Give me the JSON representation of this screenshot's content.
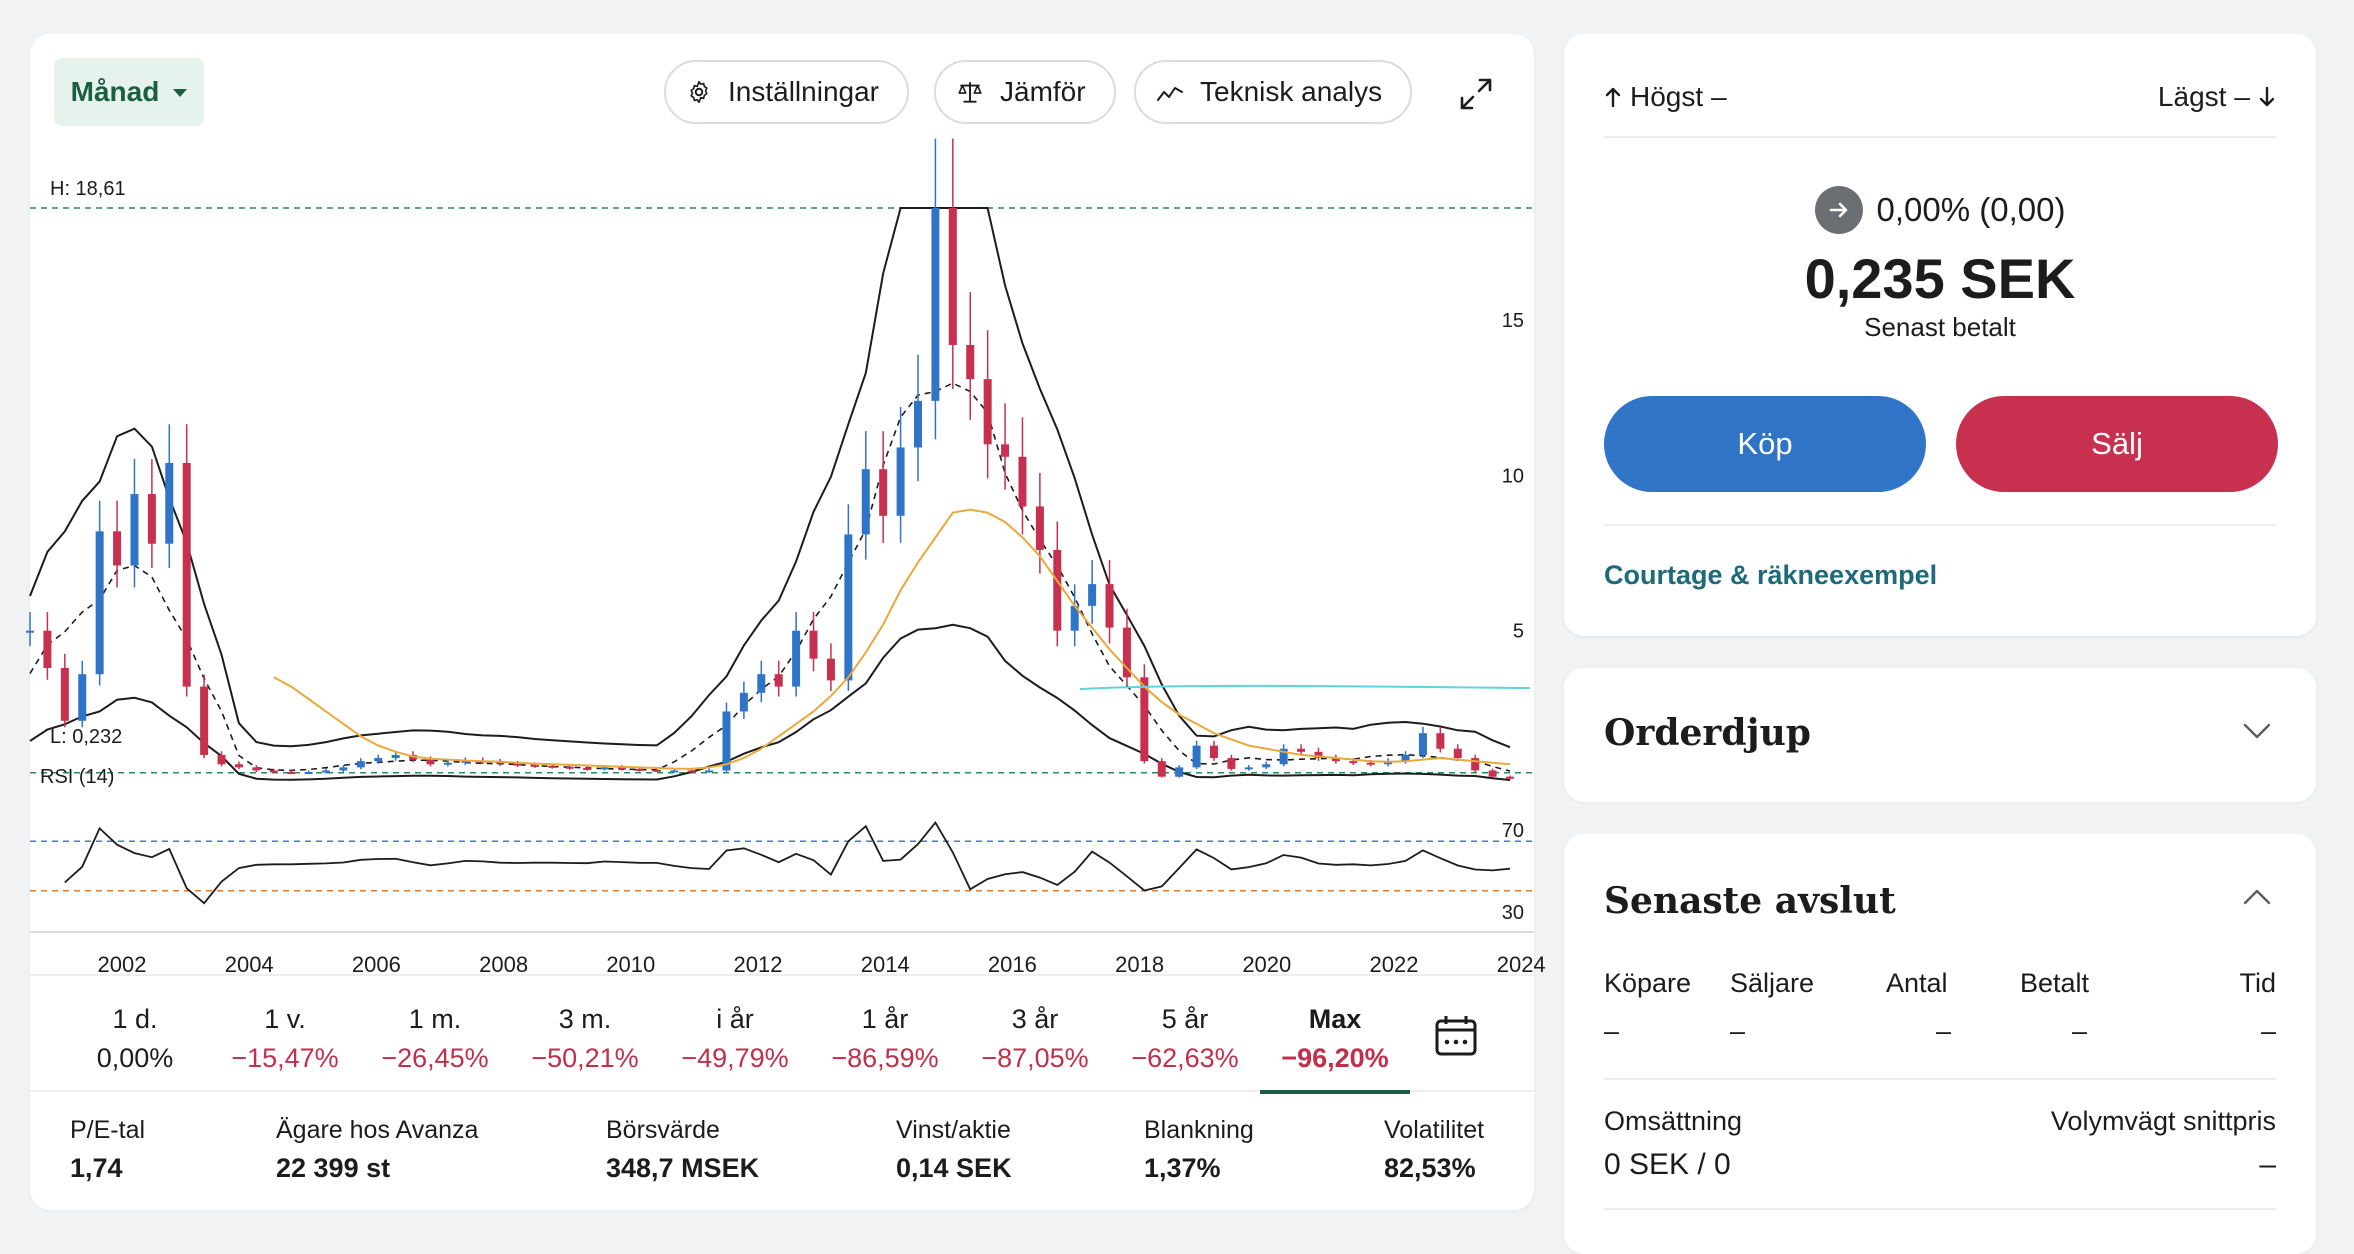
{
  "chart_toolbar": {
    "period": "Månad",
    "settings_label": "Inställningar",
    "compare_label": "Jämför",
    "technical_label": "Teknisk analys"
  },
  "chart_data": {
    "type": "line",
    "high_label": "H: 18,61",
    "low_label": "L: 0,232",
    "rsi_label": "RSI (14)",
    "y_ticks": [
      "15",
      "10",
      "5"
    ],
    "rsi_ticks": [
      "70",
      "30"
    ],
    "x_ticks": [
      "2002",
      "2004",
      "2006",
      "2008",
      "2010",
      "2012",
      "2014",
      "2016",
      "2018",
      "2020",
      "2022",
      "2024"
    ],
    "ylim": [
      0,
      18.61
    ],
    "series": [
      {
        "values": [
          5,
          3.8,
          2.1,
          3.6,
          8.2,
          7.1,
          9.4,
          7.8,
          10.4,
          3.2,
          1.0,
          0.7,
          0.6,
          0.5,
          0.45,
          0.42,
          0.45,
          0.5,
          0.6,
          0.8,
          0.9,
          1.0,
          0.85,
          0.7,
          0.75,
          0.82,
          0.78,
          0.72,
          0.68,
          0.65,
          0.62,
          0.58,
          0.55,
          0.6,
          0.55,
          0.52,
          0.5,
          0.5,
          0.48,
          0.5,
          2.4,
          3.0,
          3.6,
          3.2,
          5.0,
          4.1,
          3.4,
          8.1,
          10.2,
          8.7,
          10.9,
          12.4,
          18.61,
          14.2,
          13.1,
          11.0,
          10.6,
          9.0,
          7.6,
          5.0,
          5.8,
          6.5,
          5.1,
          3.5,
          0.8,
          0.3,
          0.6,
          1.3,
          0.9,
          0.55,
          0.6,
          0.7,
          1.2,
          1.1,
          0.9,
          0.8,
          0.75,
          0.7,
          0.8,
          1.0,
          1.7,
          1.2,
          0.9,
          0.5,
          0.3,
          0.235
        ]
      }
    ],
    "ma_long": [
      null,
      null,
      null,
      null,
      null,
      null,
      null,
      null,
      null,
      null,
      null,
      null,
      null,
      null,
      3.5,
      3.2,
      2.8,
      2.4,
      2.0,
      1.6,
      1.3,
      1.1,
      0.95,
      0.88,
      0.85,
      0.82,
      0.8,
      0.78,
      0.75,
      0.72,
      0.7,
      0.68,
      0.66,
      0.64,
      0.62,
      0.6,
      0.58,
      0.56,
      0.55,
      0.6,
      0.7,
      0.9,
      1.2,
      1.6,
      2.0,
      2.4,
      2.9,
      3.5,
      4.3,
      5.2,
      6.3,
      7.2,
      8.0,
      8.8,
      8.9,
      8.8,
      8.5,
      8.0,
      7.4,
      6.6,
      5.8,
      5.1,
      4.4,
      3.8,
      3.2,
      2.7,
      2.3,
      2.0,
      1.7,
      1.5,
      1.3,
      1.2,
      1.1,
      1.0,
      0.95,
      0.9,
      0.85,
      0.8,
      0.78,
      0.8,
      0.85,
      0.9,
      0.85,
      0.8,
      0.75,
      0.7
    ],
    "rsi_range": [
      0,
      100
    ]
  },
  "tabs": [
    {
      "label": "1 d.",
      "value": "0,00%",
      "tone": "neutral"
    },
    {
      "label": "1 v.",
      "value": "−15,47%",
      "tone": "neg"
    },
    {
      "label": "1 m.",
      "value": "−26,45%",
      "tone": "neg"
    },
    {
      "label": "3 m.",
      "value": "−50,21%",
      "tone": "neg"
    },
    {
      "label": "i år",
      "value": "−49,79%",
      "tone": "neg"
    },
    {
      "label": "1 år",
      "value": "−86,59%",
      "tone": "neg"
    },
    {
      "label": "3 år",
      "value": "−87,05%",
      "tone": "neg"
    },
    {
      "label": "5 år",
      "value": "−62,63%",
      "tone": "neg"
    },
    {
      "label": "Max",
      "value": "−96,20%",
      "tone": "neg",
      "active": true
    }
  ],
  "stats": [
    {
      "label": "P/E-tal",
      "value": "1,74"
    },
    {
      "label": "Ägare hos Avanza",
      "value": "22 399 st"
    },
    {
      "label": "Börsvärde",
      "value": "348,7 MSEK"
    },
    {
      "label": "Vinst/aktie",
      "value": "0,14 SEK"
    },
    {
      "label": "Blankning",
      "value": "1,37%"
    },
    {
      "label": "Volatilitet",
      "value": "82,53%"
    }
  ],
  "quote": {
    "high_label": "Högst",
    "high_value": "–",
    "low_label": "Lägst",
    "low_value": "–",
    "change": "0,00% (0,00)",
    "last_price": "0,235 SEK",
    "last_label": "Senast betalt",
    "buy_label": "Köp",
    "sell_label": "Sälj",
    "courtage_link": "Courtage & räkneexempel"
  },
  "orderbook": {
    "title": "Orderdjup"
  },
  "trades": {
    "title": "Senaste avslut",
    "columns": [
      "Köpare",
      "Säljare",
      "Antal",
      "Betalt",
      "Tid"
    ],
    "row": [
      "–",
      "–",
      "–",
      "–",
      "–"
    ],
    "turnover_label": "Omsättning",
    "turnover_value": "0 SEK / 0",
    "vwap_label": "Volymvägt snittpris",
    "vwap_value": "–"
  },
  "colors": {
    "up": "#2f74c7",
    "down": "#c7304e",
    "accent": "#1b5e43",
    "ma": "#e8a93a",
    "ma2": "#5fd3de"
  }
}
